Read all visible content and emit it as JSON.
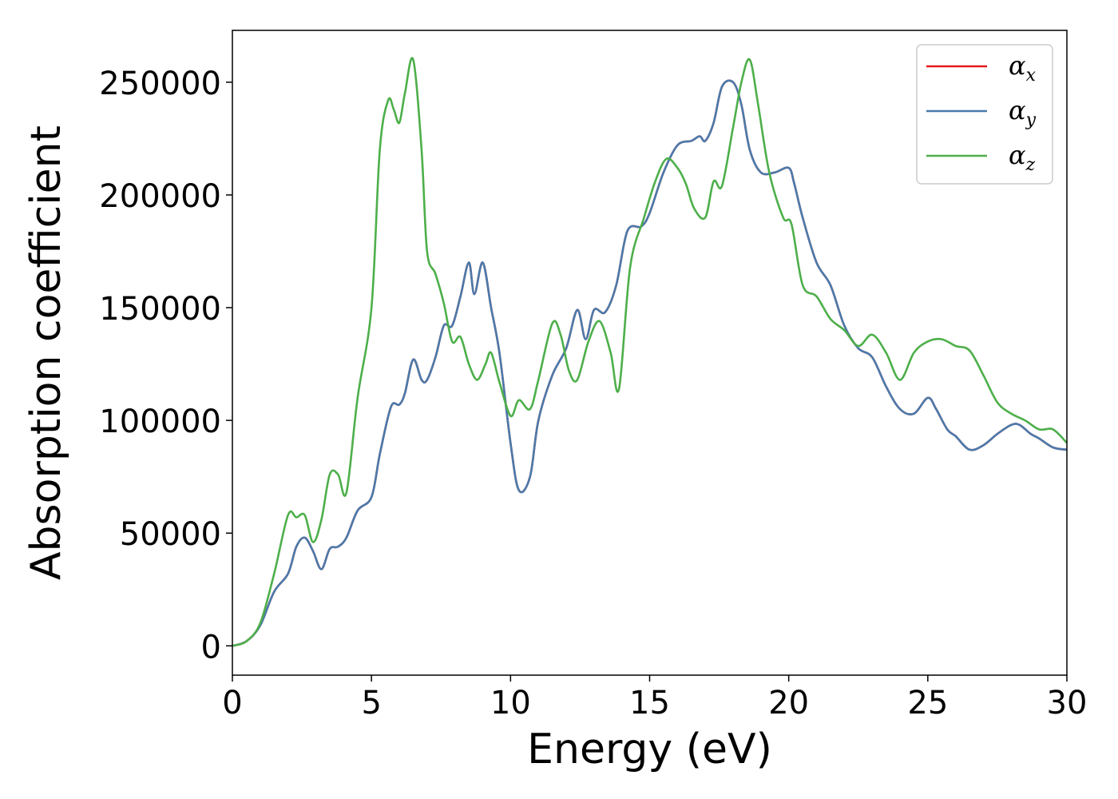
{
  "chart_data": {
    "type": "line",
    "xlabel": "Energy (eV)",
    "ylabel": "Absorption coefficient",
    "xlim": [
      0,
      30
    ],
    "ylim": [
      -13000,
      273000
    ],
    "xticks": [
      "0",
      "5",
      "10",
      "15",
      "20",
      "25",
      "30"
    ],
    "yticks": [
      "0",
      "50000",
      "100000",
      "150000",
      "200000",
      "250000"
    ],
    "grid": false,
    "legend_position": "top-right",
    "series": [
      {
        "name": "α_x",
        "legend_base": "α",
        "legend_sub": "x",
        "color": "#e41a1c",
        "x": [
          0,
          0.5,
          1.0,
          1.5,
          2.0,
          2.3,
          2.6,
          2.9,
          3.2,
          3.5,
          3.8,
          4.1,
          4.5,
          5.0,
          5.3,
          5.7,
          6.0,
          6.2,
          6.5,
          6.8,
          7.0,
          7.3,
          7.6,
          7.9,
          8.2,
          8.5,
          8.7,
          9.0,
          9.3,
          9.6,
          10.0,
          10.3,
          10.7,
          11.0,
          11.5,
          12.0,
          12.4,
          12.7,
          13.0,
          13.4,
          13.8,
          14.2,
          14.7,
          15.0,
          15.5,
          16.0,
          16.5,
          16.8,
          17.0,
          17.3,
          17.6,
          18.0,
          18.3,
          18.6,
          19.0,
          19.5,
          20.0,
          20.2,
          20.5,
          21.0,
          21.5,
          22.0,
          22.5,
          23.0,
          23.5,
          24.0,
          24.5,
          25.0,
          25.3,
          25.7,
          26.0,
          26.5,
          27.0,
          27.5,
          28.0,
          28.3,
          28.7,
          29.0,
          29.5,
          30.0
        ],
        "values": [
          0,
          2000,
          9000,
          24000,
          32000,
          44000,
          48000,
          42000,
          34000,
          43000,
          44000,
          48000,
          60000,
          66000,
          85000,
          106000,
          107000,
          112000,
          127000,
          118000,
          118000,
          128000,
          142000,
          142000,
          155000,
          170000,
          156000,
          170000,
          150000,
          130000,
          90000,
          69000,
          75000,
          100000,
          120000,
          132000,
          149000,
          136000,
          149000,
          148000,
          160000,
          184000,
          186000,
          192000,
          210000,
          222000,
          224000,
          226000,
          224000,
          232000,
          248000,
          250000,
          240000,
          220000,
          210000,
          210000,
          212000,
          205000,
          190000,
          170000,
          160000,
          142000,
          132000,
          128000,
          115000,
          105000,
          103000,
          110000,
          105000,
          96000,
          93000,
          87000,
          89000,
          94000,
          98000,
          98000,
          94000,
          92000,
          88000,
          87000
        ]
      },
      {
        "name": "α_y",
        "legend_base": "α",
        "legend_sub": "y",
        "color": "#4a7aab",
        "x": [
          0,
          0.5,
          1.0,
          1.5,
          2.0,
          2.3,
          2.6,
          2.9,
          3.2,
          3.5,
          3.8,
          4.1,
          4.5,
          5.0,
          5.3,
          5.7,
          6.0,
          6.2,
          6.5,
          6.8,
          7.0,
          7.3,
          7.6,
          7.9,
          8.2,
          8.5,
          8.7,
          9.0,
          9.3,
          9.6,
          10.0,
          10.3,
          10.7,
          11.0,
          11.5,
          12.0,
          12.4,
          12.7,
          13.0,
          13.4,
          13.8,
          14.2,
          14.7,
          15.0,
          15.5,
          16.0,
          16.5,
          16.8,
          17.0,
          17.3,
          17.6,
          18.0,
          18.3,
          18.6,
          19.0,
          19.5,
          20.0,
          20.2,
          20.5,
          21.0,
          21.5,
          22.0,
          22.5,
          23.0,
          23.5,
          24.0,
          24.5,
          25.0,
          25.3,
          25.7,
          26.0,
          26.5,
          27.0,
          27.5,
          28.0,
          28.3,
          28.7,
          29.0,
          29.5,
          30.0
        ],
        "values": [
          0,
          2000,
          9000,
          24000,
          32000,
          44000,
          48000,
          42000,
          34000,
          43000,
          44000,
          48000,
          60000,
          66000,
          85000,
          106000,
          107000,
          112000,
          127000,
          118000,
          118000,
          128000,
          142000,
          142000,
          155000,
          170000,
          156000,
          170000,
          150000,
          130000,
          90000,
          69000,
          75000,
          100000,
          120000,
          132000,
          149000,
          136000,
          149000,
          148000,
          160000,
          184000,
          186000,
          192000,
          210000,
          222000,
          224000,
          226000,
          224000,
          232000,
          248000,
          250000,
          240000,
          220000,
          210000,
          210000,
          212000,
          205000,
          190000,
          170000,
          160000,
          142000,
          132000,
          128000,
          115000,
          105000,
          103000,
          110000,
          105000,
          96000,
          93000,
          87000,
          89000,
          94000,
          98000,
          98000,
          94000,
          92000,
          88000,
          87000
        ]
      },
      {
        "name": "α_z",
        "legend_base": "α",
        "legend_sub": "z",
        "color": "#4daf4a",
        "x": [
          0,
          0.5,
          1.0,
          1.5,
          2.0,
          2.3,
          2.6,
          2.9,
          3.2,
          3.5,
          3.8,
          4.1,
          4.5,
          5.0,
          5.3,
          5.6,
          5.8,
          6.0,
          6.2,
          6.5,
          6.8,
          7.0,
          7.3,
          7.6,
          7.9,
          8.2,
          8.5,
          8.8,
          9.1,
          9.3,
          9.6,
          10.0,
          10.3,
          10.7,
          11.0,
          11.5,
          11.8,
          12.1,
          12.4,
          12.8,
          13.2,
          13.6,
          13.9,
          14.3,
          14.8,
          15.2,
          15.6,
          16.0,
          16.3,
          16.6,
          17.0,
          17.3,
          17.6,
          18.0,
          18.3,
          18.6,
          18.9,
          19.3,
          19.8,
          20.1,
          20.5,
          21.0,
          21.5,
          22.0,
          22.5,
          23.0,
          23.5,
          24.0,
          24.5,
          25.0,
          25.5,
          26.0,
          26.5,
          27.0,
          27.5,
          28.0,
          28.5,
          29.0,
          29.5,
          30.0
        ],
        "values": [
          0,
          2000,
          10000,
          32000,
          58000,
          57000,
          58000,
          46000,
          56000,
          76000,
          76000,
          68000,
          110000,
          150000,
          220000,
          242000,
          238000,
          232000,
          245000,
          260000,
          220000,
          175000,
          165000,
          152000,
          135000,
          137000,
          125000,
          118000,
          125000,
          130000,
          117000,
          102000,
          109000,
          105000,
          118000,
          143000,
          138000,
          122000,
          118000,
          135000,
          144000,
          130000,
          114000,
          168000,
          190000,
          206000,
          216000,
          212000,
          205000,
          194000,
          190000,
          206000,
          204000,
          230000,
          250000,
          260000,
          240000,
          210000,
          190000,
          187000,
          160000,
          155000,
          145000,
          140000,
          133000,
          138000,
          130000,
          118000,
          130000,
          135000,
          136000,
          133000,
          131000,
          120000,
          108000,
          103000,
          100000,
          96000,
          96000,
          90000
        ]
      }
    ]
  }
}
